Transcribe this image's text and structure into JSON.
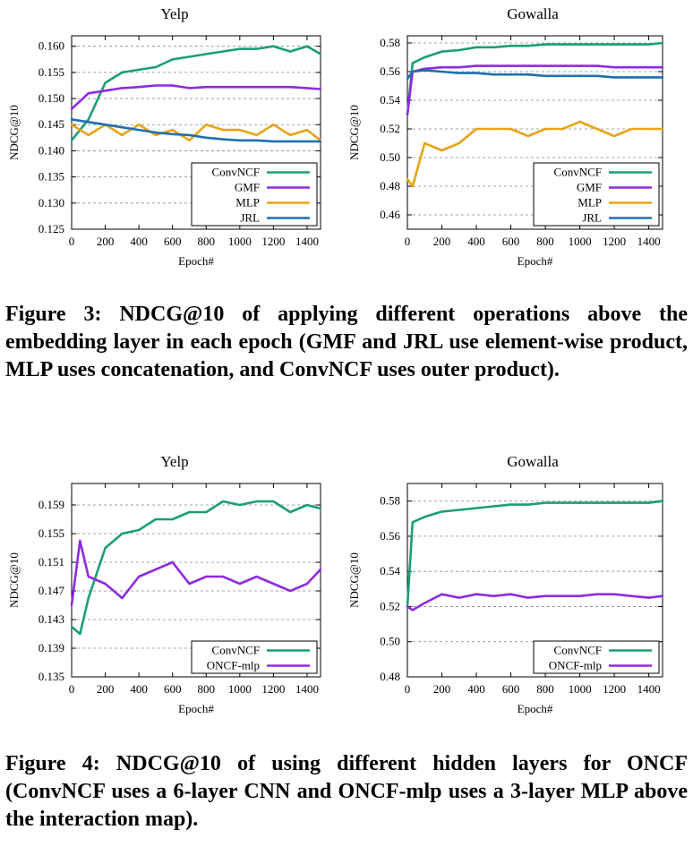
{
  "captions": {
    "fig3": "Figure 3: NDCG@10 of applying different operations above the embedding layer in each epoch (GMF and JRL use element-wise product, MLP uses concatenation, and ConvNCF uses outer product).",
    "fig4": "Figure 4: NDCG@10 of using different hidden layers for ONCF (ConvNCF uses a 6-layer CNN and ONCF-mlp uses a 3-layer MLP above the interaction map)."
  },
  "chart_data": [
    {
      "id": "fig3-yelp",
      "type": "line",
      "title": "Yelp",
      "xlabel": "Epoch#",
      "ylabel": "NDCG@10",
      "xlim": [
        0,
        1480
      ],
      "ylim": [
        0.125,
        0.162
      ],
      "xticks": [
        0,
        200,
        400,
        600,
        800,
        1000,
        1200,
        1400
      ],
      "yticks": [
        0.125,
        0.13,
        0.135,
        0.14,
        0.145,
        0.15,
        0.155,
        0.16
      ],
      "ytick_labels": [
        "0.125",
        "0.130",
        "0.135",
        "0.140",
        "0.145",
        "0.150",
        "0.155",
        "0.160"
      ],
      "grid": "y-dashed",
      "legend": "bottom-right",
      "x": [
        0,
        100,
        200,
        300,
        400,
        500,
        600,
        700,
        800,
        900,
        1000,
        1100,
        1200,
        1300,
        1400,
        1480
      ],
      "series": [
        {
          "name": "ConvNCF",
          "color": "#1b9e77",
          "values": [
            0.142,
            0.146,
            0.153,
            0.155,
            0.1555,
            0.156,
            0.1575,
            0.158,
            0.1585,
            0.159,
            0.1595,
            0.1595,
            0.16,
            0.159,
            0.16,
            0.1585
          ]
        },
        {
          "name": "GMF",
          "color": "#8e2be2",
          "values": [
            0.148,
            0.151,
            0.1515,
            0.152,
            0.1522,
            0.1525,
            0.1525,
            0.152,
            0.1522,
            0.1522,
            0.1522,
            0.1522,
            0.1522,
            0.1522,
            0.152,
            0.1518
          ]
        },
        {
          "name": "MLP",
          "color": "#e8a317",
          "values": [
            0.145,
            0.143,
            0.145,
            0.143,
            0.145,
            0.143,
            0.144,
            0.142,
            0.145,
            0.144,
            0.144,
            0.143,
            0.145,
            0.143,
            0.144,
            0.142
          ]
        },
        {
          "name": "JRL",
          "color": "#1f6fb0",
          "values": [
            0.146,
            0.1455,
            0.145,
            0.1445,
            0.144,
            0.1435,
            0.1432,
            0.143,
            0.1425,
            0.1422,
            0.142,
            0.142,
            0.1418,
            0.1418,
            0.1418,
            0.1418
          ]
        }
      ]
    },
    {
      "id": "fig3-gowalla",
      "type": "line",
      "title": "Gowalla",
      "xlabel": "Epoch#",
      "ylabel": "NDCG@10",
      "xlim": [
        0,
        1480
      ],
      "ylim": [
        0.45,
        0.585
      ],
      "xticks": [
        0,
        200,
        400,
        600,
        800,
        1000,
        1200,
        1400
      ],
      "yticks": [
        0.46,
        0.48,
        0.5,
        0.52,
        0.54,
        0.56,
        0.58
      ],
      "ytick_labels": [
        "0.46",
        "0.48",
        "0.50",
        "0.52",
        "0.54",
        "0.56",
        "0.58"
      ],
      "grid": "y-dashed",
      "legend": "bottom-right",
      "x": [
        0,
        30,
        100,
        200,
        300,
        400,
        500,
        600,
        700,
        800,
        900,
        1000,
        1100,
        1200,
        1300,
        1400,
        1480
      ],
      "series": [
        {
          "name": "ConvNCF",
          "color": "#1b9e77",
          "values": [
            0.53,
            0.566,
            0.57,
            0.574,
            0.575,
            0.577,
            0.577,
            0.578,
            0.578,
            0.579,
            0.579,
            0.579,
            0.579,
            0.579,
            0.579,
            0.579,
            0.58
          ]
        },
        {
          "name": "GMF",
          "color": "#8e2be2",
          "values": [
            0.53,
            0.56,
            0.562,
            0.563,
            0.563,
            0.564,
            0.564,
            0.564,
            0.564,
            0.564,
            0.564,
            0.564,
            0.564,
            0.563,
            0.563,
            0.563,
            0.563
          ]
        },
        {
          "name": "MLP",
          "color": "#e8a317",
          "values": [
            0.485,
            0.48,
            0.51,
            0.505,
            0.51,
            0.52,
            0.52,
            0.52,
            0.515,
            0.52,
            0.52,
            0.525,
            0.52,
            0.515,
            0.52,
            0.52,
            0.52
          ]
        },
        {
          "name": "JRL",
          "color": "#1f6fb0",
          "values": [
            0.555,
            0.56,
            0.561,
            0.56,
            0.559,
            0.559,
            0.558,
            0.558,
            0.558,
            0.557,
            0.557,
            0.557,
            0.557,
            0.556,
            0.556,
            0.556,
            0.556
          ]
        }
      ]
    },
    {
      "id": "fig4-yelp",
      "type": "line",
      "title": "Yelp",
      "xlabel": "Epoch#",
      "ylabel": "NDCG@10",
      "xlim": [
        0,
        1480
      ],
      "ylim": [
        0.135,
        0.162
      ],
      "xticks": [
        0,
        200,
        400,
        600,
        800,
        1000,
        1200,
        1400
      ],
      "yticks": [
        0.135,
        0.139,
        0.143,
        0.147,
        0.151,
        0.155,
        0.159
      ],
      "ytick_labels": [
        "0.135",
        "0.139",
        "0.143",
        "0.147",
        "0.151",
        "0.155",
        "0.159"
      ],
      "grid": "y-dashed",
      "legend": "bottom-right",
      "x": [
        0,
        50,
        100,
        200,
        300,
        400,
        500,
        600,
        700,
        800,
        900,
        1000,
        1100,
        1200,
        1300,
        1400,
        1480
      ],
      "series": [
        {
          "name": "ConvNCF",
          "color": "#1b9e77",
          "values": [
            0.142,
            0.141,
            0.146,
            0.153,
            0.155,
            0.1555,
            0.157,
            0.157,
            0.158,
            0.158,
            0.1595,
            0.159,
            0.1595,
            0.1595,
            0.158,
            0.159,
            0.1585
          ]
        },
        {
          "name": "ONCF-mlp",
          "color": "#8e2be2",
          "values": [
            0.145,
            0.154,
            0.149,
            0.148,
            0.146,
            0.149,
            0.15,
            0.151,
            0.148,
            0.149,
            0.149,
            0.148,
            0.149,
            0.148,
            0.147,
            0.148,
            0.15
          ]
        }
      ]
    },
    {
      "id": "fig4-gowalla",
      "type": "line",
      "title": "Gowalla",
      "xlabel": "Epoch#",
      "ylabel": "NDCG@10",
      "xlim": [
        0,
        1480
      ],
      "ylim": [
        0.48,
        0.59
      ],
      "xticks": [
        0,
        200,
        400,
        600,
        800,
        1000,
        1200,
        1400
      ],
      "yticks": [
        0.48,
        0.5,
        0.52,
        0.54,
        0.56,
        0.58
      ],
      "ytick_labels": [
        "0.48",
        "0.50",
        "0.52",
        "0.54",
        "0.56",
        "0.58"
      ],
      "grid": "y-dashed",
      "legend": "bottom-right",
      "x": [
        0,
        30,
        100,
        200,
        300,
        400,
        500,
        600,
        700,
        800,
        900,
        1000,
        1100,
        1200,
        1300,
        1400,
        1480
      ],
      "series": [
        {
          "name": "ConvNCF",
          "color": "#1b9e77",
          "values": [
            0.52,
            0.568,
            0.571,
            0.574,
            0.575,
            0.576,
            0.577,
            0.578,
            0.578,
            0.579,
            0.579,
            0.579,
            0.579,
            0.579,
            0.579,
            0.579,
            0.58
          ]
        },
        {
          "name": "ONCF-mlp",
          "color": "#8e2be2",
          "values": [
            0.52,
            0.518,
            0.522,
            0.527,
            0.525,
            0.527,
            0.526,
            0.527,
            0.525,
            0.526,
            0.526,
            0.526,
            0.527,
            0.527,
            0.526,
            0.525,
            0.526
          ]
        }
      ]
    }
  ]
}
